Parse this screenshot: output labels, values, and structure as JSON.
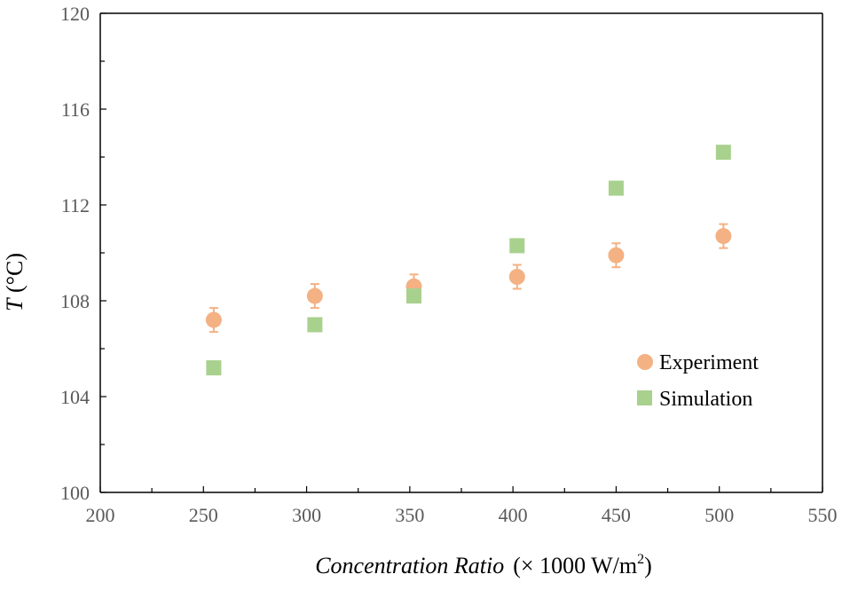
{
  "chart_data": {
    "type": "scatter",
    "title": "",
    "xlabel": {
      "main": "Concentration Ratio",
      "unit": "(× 1000 W/m",
      "unit_sup": "2",
      "unit_close": ")"
    },
    "ylabel": {
      "var": "T",
      "unit": " (°C)"
    },
    "xlim": [
      200,
      550
    ],
    "ylim": [
      100,
      120
    ],
    "xticks": [
      200,
      250,
      300,
      350,
      400,
      450,
      500,
      550
    ],
    "yticks": [
      100,
      104,
      108,
      112,
      116,
      120
    ],
    "legend_position": "right-middle",
    "series": [
      {
        "name": "Experiment",
        "marker": "circle",
        "color": "#F4B183",
        "points": [
          {
            "x": 255,
            "y": 107.2,
            "err": 0.5
          },
          {
            "x": 304,
            "y": 108.2,
            "err": 0.5
          },
          {
            "x": 352,
            "y": 108.6,
            "err": 0.5
          },
          {
            "x": 402,
            "y": 109.0,
            "err": 0.5
          },
          {
            "x": 450,
            "y": 109.9,
            "err": 0.5
          },
          {
            "x": 502,
            "y": 110.7,
            "err": 0.5
          }
        ]
      },
      {
        "name": "Simulation",
        "marker": "square",
        "color": "#A9D18E",
        "points": [
          {
            "x": 255,
            "y": 105.2
          },
          {
            "x": 304,
            "y": 107.0
          },
          {
            "x": 352,
            "y": 108.2
          },
          {
            "x": 402,
            "y": 110.3
          },
          {
            "x": 450,
            "y": 112.7
          },
          {
            "x": 502,
            "y": 114.2
          }
        ]
      }
    ]
  }
}
